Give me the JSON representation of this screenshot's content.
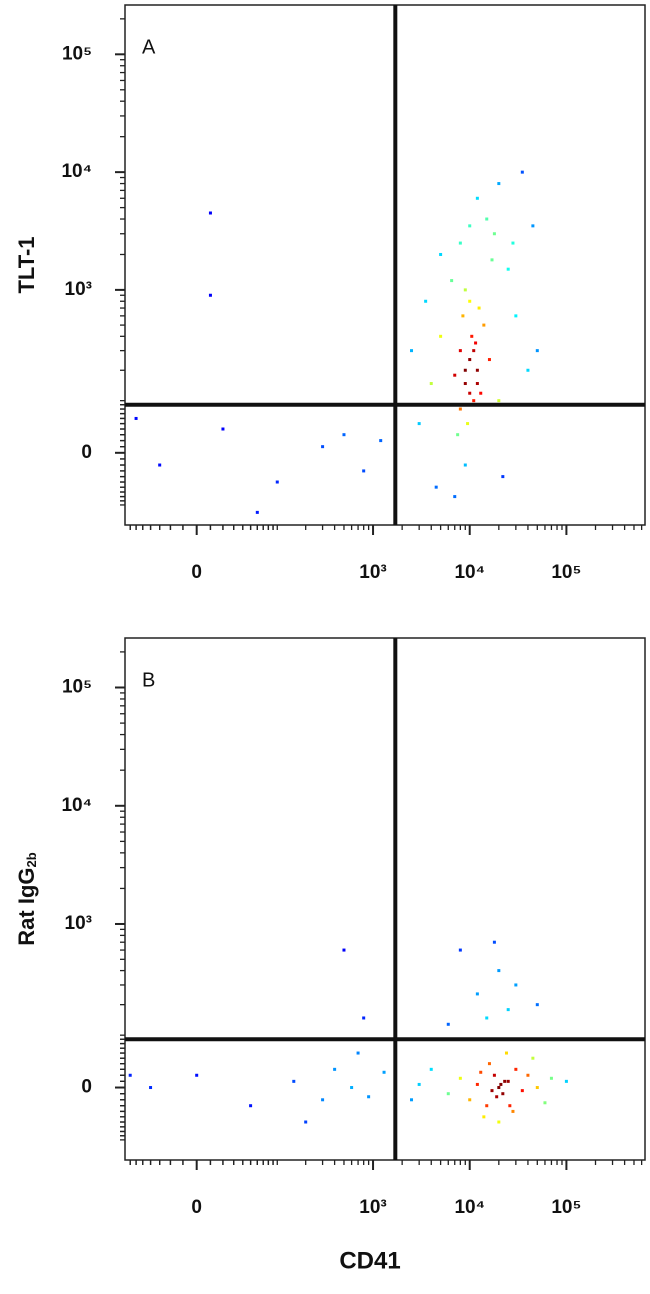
{
  "chart_data": [
    {
      "type": "scatter",
      "label": "A",
      "ylabel": "TLT-1",
      "x": [
        9000,
        10000,
        11000,
        8000,
        12000,
        9500,
        10500,
        7000,
        13000,
        8500,
        11500,
        9000,
        10000,
        6000,
        14000,
        7500,
        12500,
        9000,
        16000,
        5000,
        4000,
        20000,
        25000,
        5000,
        18000,
        30000,
        3500,
        22000,
        4500,
        15000,
        8000,
        40000,
        3000,
        6500,
        28000,
        12000,
        20000,
        35000,
        50000,
        2500,
        45000,
        7000,
        17000,
        10000,
        -30,
        20,
        100,
        300,
        500,
        800,
        1200,
        60,
        -60,
        10,
        10,
        9000,
        11000,
        10000,
        8000,
        12000
      ],
      "y": [
        150,
        250,
        100,
        300,
        200,
        50,
        400,
        180,
        120,
        600,
        350,
        -20,
        800,
        90,
        500,
        30,
        700,
        1000,
        250,
        400,
        150,
        100,
        1500,
        2000,
        3000,
        600,
        800,
        -40,
        -60,
        4000,
        2500,
        200,
        50,
        1200,
        2500,
        6000,
        8000,
        10000,
        300,
        300,
        3500,
        -80,
        1800,
        3500,
        -20,
        40,
        -50,
        10,
        30,
        -30,
        20,
        -120,
        60,
        4500,
        900,
        200,
        300,
        120,
        80,
        150
      ],
      "xlim": [
        -80,
        650000
      ],
      "ylim": [
        -160,
        262144
      ],
      "xticks": [
        0,
        {
          "value": 1000,
          "label": "10³"
        },
        {
          "value": 10000,
          "label": "10⁴"
        },
        {
          "value": 100000,
          "label": "10⁵"
        }
      ],
      "yticks": [
        0,
        {
          "value": 1000,
          "label": "10³"
        },
        {
          "value": 10000,
          "label": "10⁴"
        },
        {
          "value": 100000,
          "label": "10⁵"
        }
      ],
      "scale": "logicle",
      "quadrant": [
        1700,
        90
      ]
    },
    {
      "type": "scatter",
      "label": "B",
      "ylabel": "Rat IgG",
      "ylabel_sub": "2b",
      "xlabel": "CD41",
      "x": [
        20000,
        18000,
        22000,
        25000,
        15000,
        30000,
        12000,
        28000,
        16000,
        35000,
        10000,
        8000,
        40000,
        6000,
        50000,
        4000,
        60000,
        3000,
        24000,
        20000,
        14000,
        45000,
        100000,
        2500,
        70000,
        13000,
        19000,
        26000,
        21000,
        17000,
        23000,
        8000,
        12000,
        20000,
        30000,
        15000,
        25000,
        50000,
        6000,
        18000,
        500,
        800,
        -40,
        0,
        50,
        150,
        300,
        400,
        600,
        900,
        1300,
        200,
        -70,
        700
      ],
      "y": [
        0,
        20,
        -10,
        10,
        -30,
        30,
        5,
        -40,
        40,
        -5,
        -20,
        15,
        20,
        -10,
        0,
        30,
        -25,
        5,
        60,
        -60,
        -50,
        50,
        10,
        -20,
        15,
        25,
        -15,
        -30,
        5,
        -5,
        10,
        600,
        250,
        400,
        300,
        150,
        180,
        200,
        130,
        700,
        600,
        150,
        0,
        20,
        -30,
        10,
        -20,
        30,
        0,
        -15,
        25,
        -60,
        20,
        60
      ],
      "xlim": [
        -80,
        650000
      ],
      "ylim": [
        -160,
        262144
      ],
      "xticks": [
        0,
        {
          "value": 1000,
          "label": "10³"
        },
        {
          "value": 10000,
          "label": "10⁴"
        },
        {
          "value": 100000,
          "label": "10⁵"
        }
      ],
      "yticks": [
        0,
        {
          "value": 1000,
          "label": "10³"
        },
        {
          "value": 10000,
          "label": "10⁴"
        },
        {
          "value": 100000,
          "label": "10⁵"
        }
      ],
      "scale": "logicle",
      "quadrant": [
        1700,
        90
      ]
    }
  ]
}
